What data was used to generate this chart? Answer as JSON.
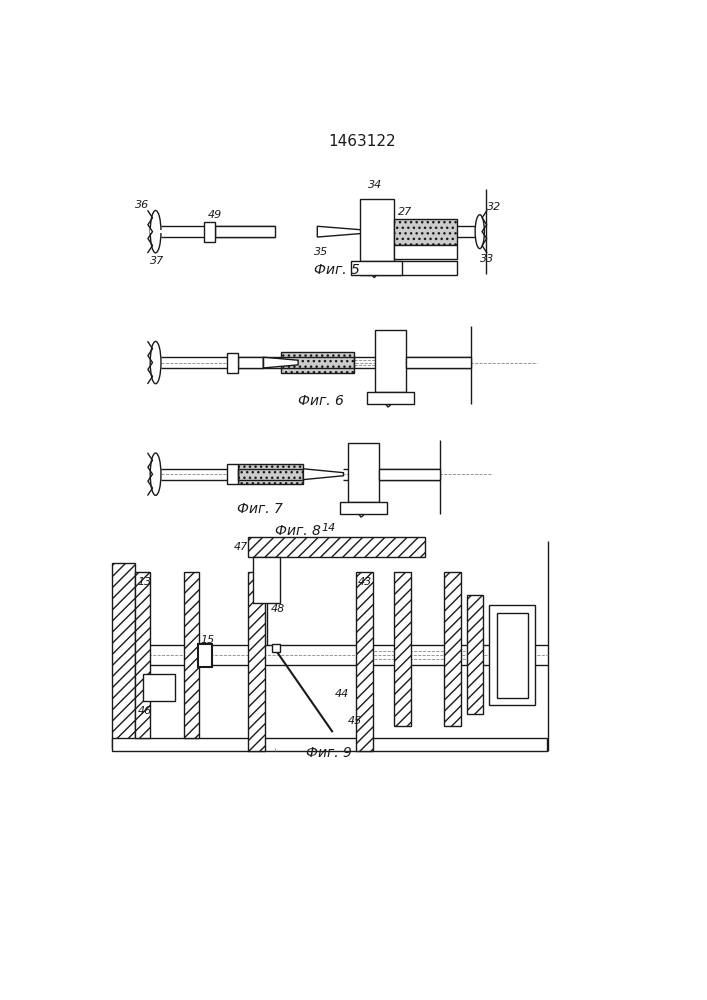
{
  "title": "1463122",
  "fig5_label": "Фиг. 5",
  "fig6_label": "Фиг. 6",
  "fig7_label": "Фиг. 7",
  "fig8_label": "Фиг. 8",
  "fig9_label": "Фиг. 9",
  "bg_color": "#ffffff",
  "lc": "#1a1a1a",
  "lw": 1.0,
  "lw_thin": 0.6,
  "lw_thick": 1.5
}
